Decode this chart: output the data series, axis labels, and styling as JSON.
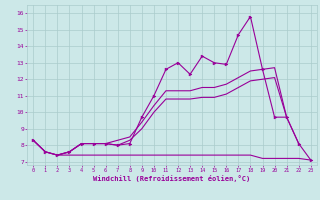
{
  "x_values": [
    0,
    1,
    2,
    3,
    4,
    5,
    6,
    7,
    8,
    9,
    10,
    11,
    12,
    13,
    14,
    15,
    16,
    17,
    18,
    19,
    20,
    21,
    22,
    23
  ],
  "main_line": [
    8.3,
    7.6,
    7.4,
    7.6,
    8.1,
    8.1,
    8.1,
    8.0,
    8.1,
    9.7,
    11.0,
    12.6,
    13.0,
    12.3,
    13.4,
    13.0,
    12.9,
    14.7,
    15.8,
    12.6,
    9.7,
    9.7,
    8.1,
    7.1
  ],
  "line2": [
    8.3,
    7.6,
    7.4,
    7.6,
    8.1,
    8.1,
    8.1,
    8.3,
    8.5,
    9.4,
    10.4,
    11.3,
    11.3,
    11.3,
    11.5,
    11.5,
    11.7,
    12.1,
    12.5,
    12.6,
    12.7,
    9.7,
    8.1,
    null
  ],
  "line3": [
    8.3,
    7.6,
    7.4,
    7.6,
    8.1,
    8.1,
    8.1,
    8.0,
    8.3,
    9.0,
    10.0,
    10.8,
    10.8,
    10.8,
    10.9,
    10.9,
    11.1,
    11.5,
    11.9,
    12.0,
    12.1,
    9.7,
    null,
    null
  ],
  "flat_line": [
    null,
    null,
    7.4,
    7.4,
    7.4,
    7.4,
    7.4,
    7.4,
    7.4,
    7.4,
    7.4,
    7.4,
    7.4,
    7.4,
    7.4,
    7.4,
    7.4,
    7.4,
    7.4,
    7.2,
    7.2,
    7.2,
    7.2,
    7.1
  ],
  "color": "#990099",
  "bg_color": "#cce8e8",
  "grid_color": "#aacccc",
  "ylabel_values": [
    7,
    8,
    9,
    10,
    11,
    12,
    13,
    14,
    15,
    16
  ],
  "xlabel": "Windchill (Refroidissement éolien,°C)",
  "xlim": [
    -0.5,
    23.5
  ],
  "ylim": [
    6.8,
    16.5
  ]
}
